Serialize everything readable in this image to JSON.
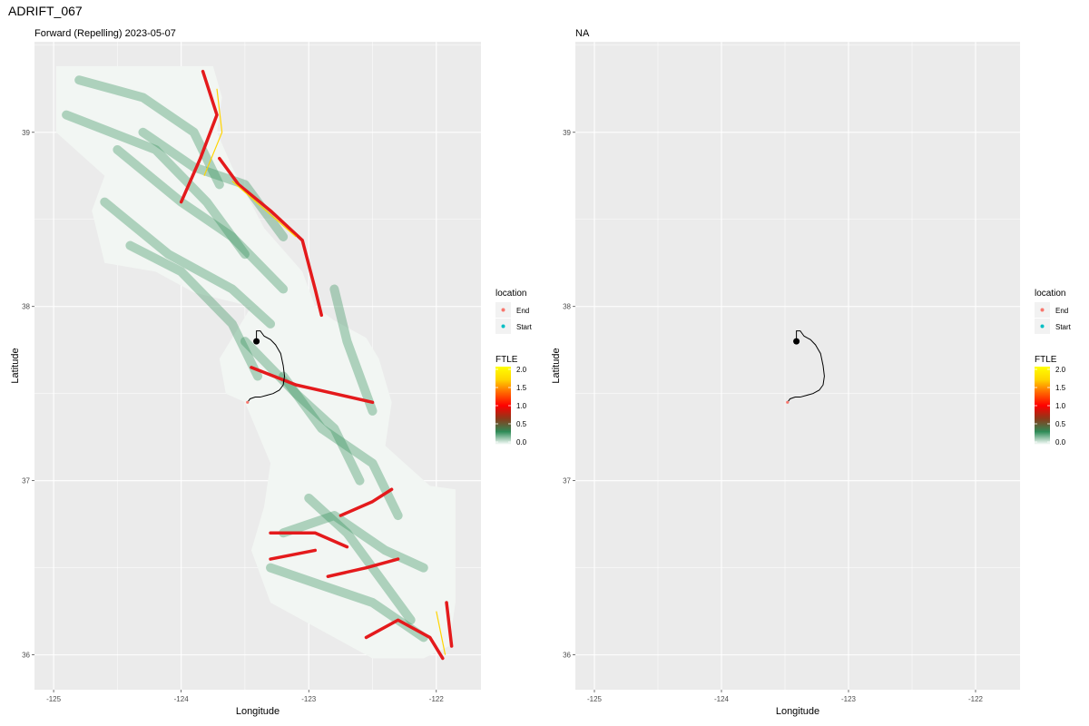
{
  "page": {
    "title": "ADRIFT_067"
  },
  "colors": {
    "panel_bg": "#EBEBEB",
    "grid": "#FFFFFF",
    "ftle_scale": [
      "#FFFFFF",
      "#2E8B57",
      "#8B3A1A",
      "#FF0000",
      "#FF6600",
      "#FFD400",
      "#FFFF00"
    ],
    "end_point": "#F8766D",
    "start_point": "#00BFC4",
    "track": "#000000"
  },
  "chart_data": [
    {
      "type": "heatmap",
      "title": "Forward (Repelling) 2023-05-07",
      "xlabel": "Longitude",
      "ylabel": "Latitude",
      "xlim": [
        -125.15,
        -121.65
      ],
      "ylim": [
        35.8,
        39.52
      ],
      "x_ticks": [
        -125,
        -124,
        -123,
        -122
      ],
      "y_ticks": [
        36,
        37,
        38,
        39
      ],
      "grid": true,
      "ftle_field": "present",
      "legend_location": {
        "title": "location",
        "items": [
          {
            "label": "End",
            "color": "#F8766D"
          },
          {
            "label": "Start",
            "color": "#00BFC4"
          }
        ]
      },
      "legend_ftle": {
        "title": "FTLE",
        "min": 0.0,
        "max": 2.0,
        "ticks": [
          "2.0",
          "1.5",
          "1.0",
          "0.5",
          "0.0"
        ]
      },
      "track": {
        "start": [
          -123.41,
          37.8
        ],
        "end": [
          -123.48,
          37.45
        ],
        "x": [
          -123.41,
          -123.41,
          -123.38,
          -123.35,
          -123.3,
          -123.26,
          -123.22,
          -123.2,
          -123.19,
          -123.2,
          -123.23,
          -123.28,
          -123.33,
          -123.38,
          -123.42,
          -123.46,
          -123.48
        ],
        "y": [
          37.8,
          37.86,
          37.86,
          37.83,
          37.81,
          37.78,
          37.73,
          37.66,
          37.6,
          37.55,
          37.52,
          37.5,
          37.49,
          37.48,
          37.48,
          37.47,
          37.45
        ]
      }
    },
    {
      "type": "scatter",
      "title": "NA",
      "xlabel": "Longitude",
      "ylabel": "Latitude",
      "xlim": [
        -125.15,
        -121.65
      ],
      "ylim": [
        35.8,
        39.52
      ],
      "x_ticks": [
        -125,
        -124,
        -123,
        -122
      ],
      "y_ticks": [
        36,
        37,
        38,
        39
      ],
      "grid": true,
      "ftle_field": "absent",
      "legend_location": {
        "title": "location",
        "items": [
          {
            "label": "End",
            "color": "#F8766D"
          },
          {
            "label": "Start",
            "color": "#00BFC4"
          }
        ]
      },
      "legend_ftle": {
        "title": "FTLE",
        "min": 0.0,
        "max": 2.0,
        "ticks": [
          "2.0",
          "1.5",
          "1.0",
          "0.5",
          "0.0"
        ]
      },
      "track": {
        "start": [
          -123.41,
          37.8
        ],
        "end": [
          -123.48,
          37.45
        ],
        "x": [
          -123.41,
          -123.41,
          -123.38,
          -123.35,
          -123.3,
          -123.26,
          -123.22,
          -123.2,
          -123.19,
          -123.2,
          -123.23,
          -123.28,
          -123.33,
          -123.38,
          -123.42,
          -123.46,
          -123.48
        ],
        "y": [
          37.8,
          37.86,
          37.86,
          37.83,
          37.81,
          37.78,
          37.73,
          37.66,
          37.6,
          37.55,
          37.52,
          37.5,
          37.49,
          37.48,
          37.48,
          37.47,
          37.45
        ]
      }
    }
  ]
}
